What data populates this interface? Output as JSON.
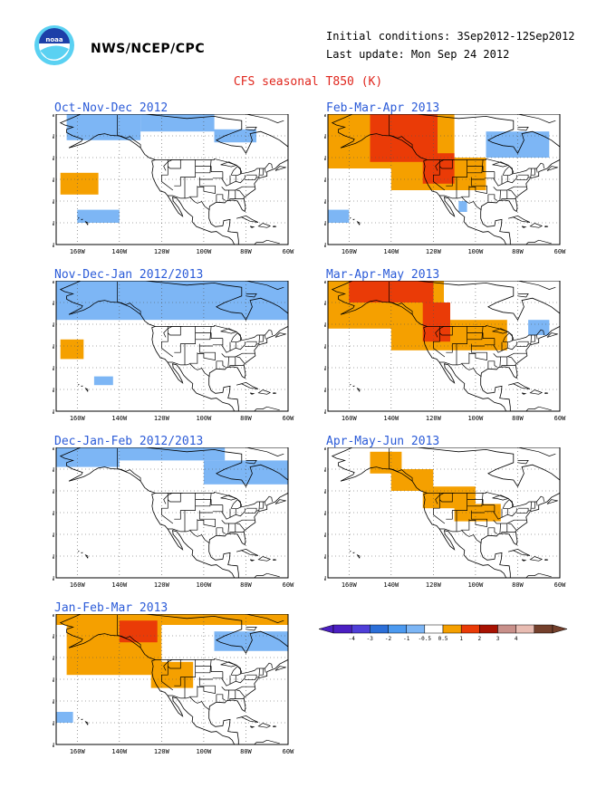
{
  "header": {
    "agency": "NWS/NCEP/CPC",
    "initial_conditions": "Initial conditions: 3Sep2012-12Sep2012",
    "last_update": "Last update: Mon Sep 24 2012",
    "main_title": "CFS seasonal T850 (K)",
    "logo_text": "noaa"
  },
  "axis": {
    "lat_labels": [
      "70N",
      "60N",
      "50N",
      "40N",
      "30N",
      "20N",
      "10N"
    ],
    "lon_labels": [
      "160W",
      "140W",
      "120W",
      "100W",
      "80W",
      "60W"
    ]
  },
  "colors": {
    "blue_light": "#7db6f5",
    "orange": "#f5a000",
    "red": "#ea3b07",
    "land_line": "#000000",
    "title_blue": "#2b5bd8",
    "title_red": "#e0271e"
  },
  "panels": [
    {
      "id": "ond",
      "title": "Oct-Nov-Dec 2012",
      "anomalies": [
        {
          "level": "blue",
          "lon": [
            -165,
            -130
          ],
          "lat": [
            58,
            70
          ]
        },
        {
          "level": "blue",
          "lon": [
            -130,
            -95
          ],
          "lat": [
            62,
            70
          ]
        },
        {
          "level": "blue",
          "lon": [
            -95,
            -75
          ],
          "lat": [
            57,
            63
          ]
        },
        {
          "level": "orange",
          "lon": [
            -168,
            -150
          ],
          "lat": [
            33,
            43
          ]
        },
        {
          "level": "blue",
          "lon": [
            -160,
            -140
          ],
          "lat": [
            20,
            26
          ]
        }
      ]
    },
    {
      "id": "fma",
      "title": "Feb-Mar-Apr 2013",
      "anomalies": [
        {
          "level": "orange",
          "lon": [
            -170,
            -110
          ],
          "lat": [
            45,
            70
          ]
        },
        {
          "level": "orange",
          "lon": [
            -140,
            -95
          ],
          "lat": [
            35,
            50
          ]
        },
        {
          "level": "red",
          "lon": [
            -150,
            -118
          ],
          "lat": [
            48,
            70
          ]
        },
        {
          "level": "red",
          "lon": [
            -125,
            -110
          ],
          "lat": [
            38,
            52
          ]
        },
        {
          "level": "blue",
          "lon": [
            -95,
            -65
          ],
          "lat": [
            50,
            62
          ]
        },
        {
          "level": "blue",
          "lon": [
            -170,
            -160
          ],
          "lat": [
            20,
            26
          ]
        },
        {
          "level": "blue",
          "lon": [
            -108,
            -104
          ],
          "lat": [
            25,
            30
          ]
        }
      ]
    },
    {
      "id": "ndj",
      "title": "Nov-Dec-Jan 2012/2013",
      "anomalies": [
        {
          "level": "blue",
          "lon": [
            -170,
            -60
          ],
          "lat": [
            52,
            70
          ]
        },
        {
          "level": "orange",
          "lon": [
            -168,
            -157
          ],
          "lat": [
            34,
            43
          ]
        },
        {
          "level": "blue",
          "lon": [
            -152,
            -143
          ],
          "lat": [
            22,
            26
          ]
        }
      ]
    },
    {
      "id": "mam",
      "title": "Mar-Apr-May 2013",
      "anomalies": [
        {
          "level": "orange",
          "lon": [
            -170,
            -115
          ],
          "lat": [
            48,
            70
          ]
        },
        {
          "level": "orange",
          "lon": [
            -140,
            -85
          ],
          "lat": [
            38,
            52
          ]
        },
        {
          "level": "red",
          "lon": [
            -160,
            -120
          ],
          "lat": [
            60,
            70
          ]
        },
        {
          "level": "red",
          "lon": [
            -125,
            -112
          ],
          "lat": [
            42,
            60
          ]
        },
        {
          "level": "blue",
          "lon": [
            -75,
            -65
          ],
          "lat": [
            45,
            52
          ]
        }
      ]
    },
    {
      "id": "djf",
      "title": "Dec-Jan-Feb 2012/2013",
      "anomalies": [
        {
          "level": "blue",
          "lon": [
            -170,
            -140
          ],
          "lat": [
            61,
            70
          ]
        },
        {
          "level": "blue",
          "lon": [
            -140,
            -90
          ],
          "lat": [
            64,
            70
          ]
        },
        {
          "level": "blue",
          "lon": [
            -100,
            -60
          ],
          "lat": [
            53,
            64
          ]
        }
      ]
    },
    {
      "id": "amj",
      "title": "Apr-May-Jun 2013",
      "anomalies": [
        {
          "level": "orange",
          "lon": [
            -150,
            -135
          ],
          "lat": [
            58,
            68
          ]
        },
        {
          "level": "orange",
          "lon": [
            -140,
            -120
          ],
          "lat": [
            50,
            60
          ]
        },
        {
          "level": "orange",
          "lon": [
            -125,
            -100
          ],
          "lat": [
            42,
            52
          ]
        },
        {
          "level": "orange",
          "lon": [
            -110,
            -88
          ],
          "lat": [
            36,
            44
          ]
        }
      ]
    },
    {
      "id": "jfm",
      "title": "Jan-Feb-Mar 2013",
      "anomalies": [
        {
          "level": "orange",
          "lon": [
            -170,
            -60
          ],
          "lat": [
            65,
            70
          ]
        },
        {
          "level": "orange",
          "lon": [
            -165,
            -120
          ],
          "lat": [
            42,
            65
          ]
        },
        {
          "level": "orange",
          "lon": [
            -125,
            -105
          ],
          "lat": [
            36,
            48
          ]
        },
        {
          "level": "red",
          "lon": [
            -140,
            -122
          ],
          "lat": [
            57,
            67
          ]
        },
        {
          "level": "blue",
          "lon": [
            -95,
            -60
          ],
          "lat": [
            53,
            62
          ]
        },
        {
          "level": "blue",
          "lon": [
            -170,
            -162
          ],
          "lat": [
            20,
            25
          ]
        }
      ]
    }
  ],
  "colorbar": {
    "ticks": [
      "-4",
      "-3",
      "-2",
      "-1",
      "-0.5",
      "0.5",
      "1",
      "2",
      "3",
      "4"
    ],
    "colors": [
      "#4b1fc2",
      "#4f3fd8",
      "#2c6fd8",
      "#4c9af0",
      "#7db6f5",
      "#ffffff",
      "#f5a000",
      "#ea3b07",
      "#a81202",
      "#c8908a",
      "#e8bcb2",
      "#74402c"
    ]
  }
}
